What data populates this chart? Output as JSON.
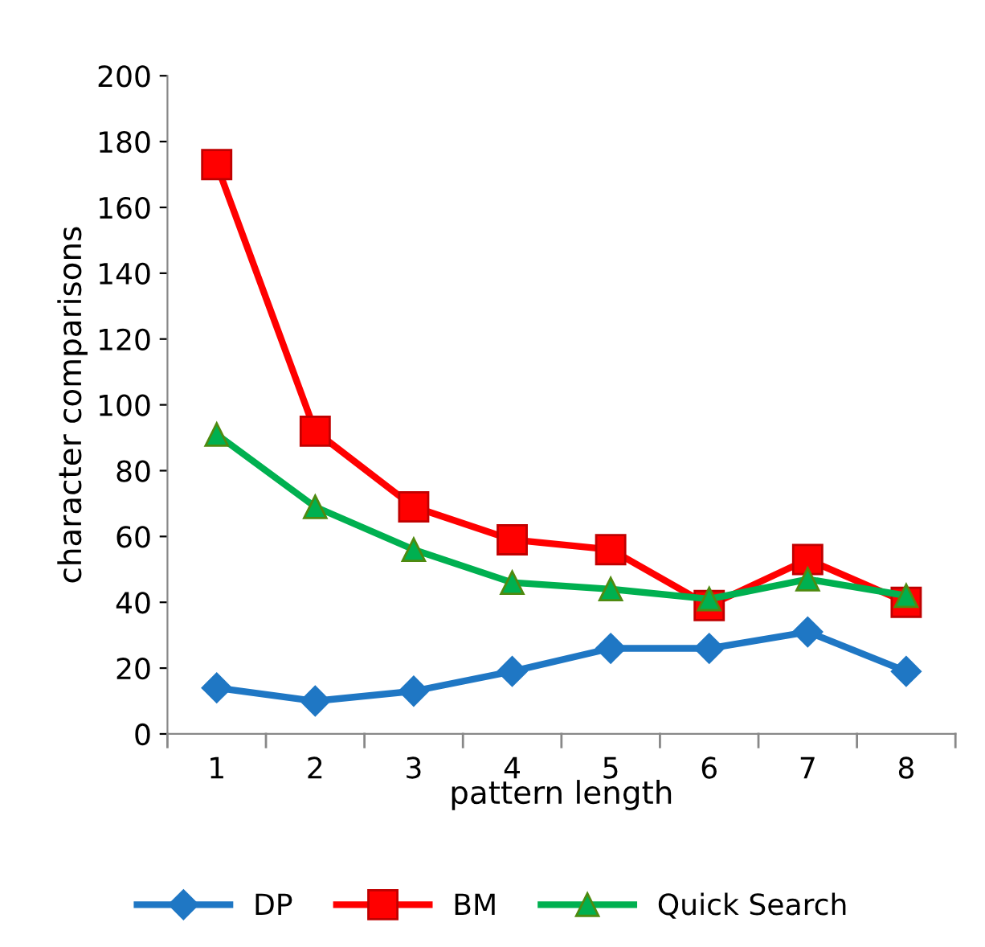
{
  "chart_data": {
    "type": "line",
    "xlabel": "pattern length",
    "ylabel": "character comparisons",
    "categories": [
      "1",
      "2",
      "3",
      "4",
      "5",
      "6",
      "7",
      "8"
    ],
    "series": [
      {
        "name": "DP",
        "color": "#1f77c4",
        "marker": "diamond",
        "values": [
          14,
          10,
          13,
          19,
          26,
          26,
          31,
          19
        ]
      },
      {
        "name": "BM",
        "color": "#ff0000",
        "marker": "square",
        "values": [
          173,
          92,
          69,
          59,
          56,
          39,
          53,
          40
        ]
      },
      {
        "name": "Quick Search",
        "color": "#00b050",
        "marker": "triangle",
        "values": [
          91,
          69,
          56,
          46,
          44,
          41,
          47,
          42
        ]
      }
    ],
    "ylim": [
      0,
      200
    ],
    "yticks": [
      0,
      20,
      40,
      60,
      80,
      100,
      120,
      140,
      160,
      180,
      200
    ],
    "grid": false,
    "legend": "bottom",
    "line_style": "solid"
  }
}
